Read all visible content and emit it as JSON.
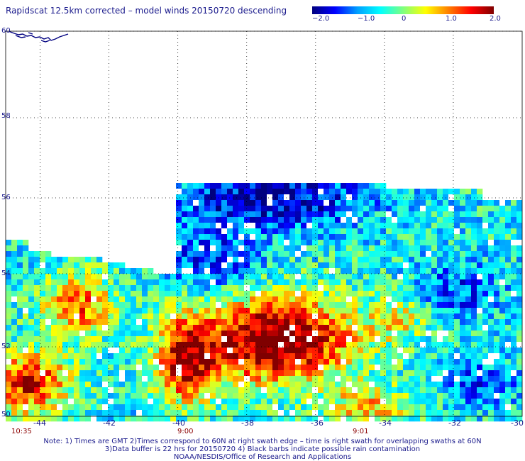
{
  "title": "Rapidscat 12.5km corrected – model winds 20150720 descending",
  "colorbar": {
    "labels": [
      "−2.0",
      "−1.0",
      "0",
      "1.0",
      "2.0"
    ],
    "range": [
      -2.0,
      2.0
    ],
    "colors": [
      "#00007f",
      "#0000ff",
      "#00a0ff",
      "#00ffff",
      "#7fff7f",
      "#ffff00",
      "#ff8000",
      "#ff0000",
      "#7f0000"
    ]
  },
  "map": {
    "lat_range": [
      50,
      60
    ],
    "lon_range": [
      -45,
      -30
    ],
    "lat_labels": [
      "60",
      "58",
      "56",
      "54",
      "52",
      "50"
    ],
    "lon_labels": [
      "-44",
      "-42",
      "-40",
      "-38",
      "-36",
      "-34",
      "-32",
      "-30"
    ],
    "time_labels": [
      "10:35",
      "9:00",
      "9:01"
    ],
    "no_data_color": "#ffffff",
    "coast_color": "#000080"
  },
  "notes": [
    "Note: 1) Times are GMT 2)Times correspond to 60N at right swath edge – time is right swath for overlapping swaths at 60N",
    "3)Data buffer is 22 hrs for 20150720 4) Black barbs indicate possible rain contamination",
    "NOAA/NESDIS/Office of Research and Applications"
  ]
}
